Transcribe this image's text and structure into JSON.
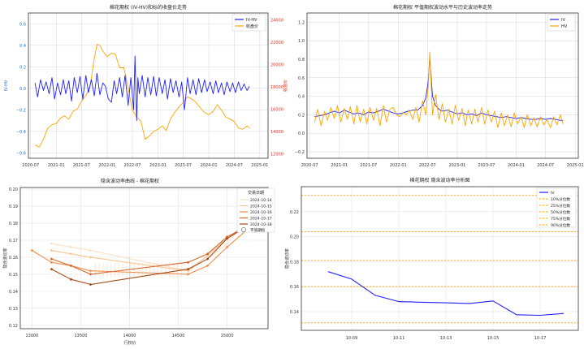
{
  "chart_data": [
    {
      "type": "line",
      "title": "棉花期权 (IV-HV)和标的收盘价走势",
      "xlabel": "",
      "ylabel": "IV-HV",
      "y2label": "收盘价",
      "xlim": [
        "2020-06-15",
        "2025-03-01"
      ],
      "xticks": [
        "2020-07",
        "2021-01",
        "2021-07",
        "2022-01",
        "2022-07",
        "2023-01",
        "2023-07",
        "2024-01",
        "2024-07",
        "2025-01"
      ],
      "ylim": [
        -0.65,
        0.7
      ],
      "yticks": [
        -0.6,
        -0.4,
        -0.2,
        0.0,
        0.2,
        0.4,
        0.6
      ],
      "y2lim": [
        11600,
        24600
      ],
      "y2ticks": [
        12000,
        14000,
        16000,
        18000,
        20000,
        22000,
        24000
      ],
      "grid": true,
      "legend": "top-right",
      "series": [
        {
          "name": "IV-HV",
          "color": "#1f1fff",
          "axis": "left",
          "x": [
            "2020-08-01",
            "2020-08-20",
            "2020-09-10",
            "2020-10-01",
            "2020-10-20",
            "2020-11-10",
            "2020-12-01",
            "2020-12-20",
            "2021-01-10",
            "2021-02-01",
            "2021-02-20",
            "2021-03-10",
            "2021-04-01",
            "2021-04-20",
            "2021-05-10",
            "2021-06-01",
            "2021-06-20",
            "2021-07-10",
            "2021-08-01",
            "2021-08-20",
            "2021-09-10",
            "2021-10-01",
            "2021-10-20",
            "2021-11-10",
            "2021-12-01",
            "2021-12-20",
            "2022-01-10",
            "2022-02-01",
            "2022-02-20",
            "2022-03-10",
            "2022-04-01",
            "2022-04-20",
            "2022-05-10",
            "2022-06-01",
            "2022-06-20",
            "2022-07-10",
            "2022-07-20",
            "2022-08-01",
            "2022-08-10",
            "2022-08-20",
            "2022-09-10",
            "2022-10-01",
            "2022-10-20",
            "2022-11-10",
            "2022-12-01",
            "2022-12-20",
            "2023-01-10",
            "2023-02-01",
            "2023-02-20",
            "2023-03-10",
            "2023-04-01",
            "2023-04-20",
            "2023-05-10",
            "2023-06-01",
            "2023-06-20",
            "2023-07-10",
            "2023-08-01",
            "2023-08-20",
            "2023-09-10",
            "2023-10-01",
            "2023-10-20",
            "2023-11-10",
            "2023-12-01",
            "2023-12-20",
            "2024-01-10",
            "2024-02-01",
            "2024-02-20",
            "2024-03-10",
            "2024-04-01",
            "2024-04-20",
            "2024-05-10",
            "2024-06-01",
            "2024-06-20",
            "2024-07-10",
            "2024-08-01",
            "2024-08-20",
            "2024-09-10",
            "2024-10-01",
            "2024-10-18"
          ],
          "values": [
            0.05,
            -0.08,
            0.08,
            -0.02,
            0.06,
            -0.05,
            0.1,
            -0.1,
            0.05,
            -0.06,
            0.08,
            -0.05,
            0.07,
            -0.12,
            0.1,
            -0.04,
            0.11,
            -0.1,
            0.12,
            -0.04,
            0.08,
            -0.07,
            0.14,
            -0.06,
            0.05,
            0.02,
            -0.1,
            -0.13,
            0.07,
            -0.05,
            0.1,
            -0.08,
            0.12,
            -0.16,
            0.1,
            -0.2,
            0.3,
            -0.3,
            0.1,
            -0.05,
            0.12,
            -0.08,
            0.1,
            -0.06,
            0.11,
            -0.07,
            0.1,
            -0.05,
            0.08,
            -0.1,
            0.09,
            -0.04,
            0.07,
            -0.08,
            0.06,
            -0.2,
            0.1,
            -0.05,
            0.08,
            -0.06,
            0.09,
            -0.04,
            0.08,
            -0.03,
            0.06,
            -0.05,
            0.07,
            -0.04,
            0.05,
            -0.06,
            0.06,
            -0.03,
            0.05,
            -0.04,
            0.06,
            -0.02,
            0.04,
            -0.02,
            0.02
          ]
        },
        {
          "name": "收盘价",
          "color": "#ffa500",
          "axis": "right",
          "x": [
            "2020-08-01",
            "2020-09-01",
            "2020-10-01",
            "2020-11-01",
            "2020-12-01",
            "2021-01-01",
            "2021-02-01",
            "2021-03-01",
            "2021-04-01",
            "2021-05-01",
            "2021-06-01",
            "2021-07-01",
            "2021-08-01",
            "2021-09-01",
            "2021-10-01",
            "2021-10-20",
            "2021-11-10",
            "2021-12-01",
            "2022-01-01",
            "2022-02-01",
            "2022-03-01",
            "2022-04-01",
            "2022-05-01",
            "2022-06-01",
            "2022-07-01",
            "2022-08-01",
            "2022-09-01",
            "2022-10-01",
            "2022-11-01",
            "2022-12-01",
            "2023-01-01",
            "2023-02-01",
            "2023-03-01",
            "2023-04-01",
            "2023-05-01",
            "2023-06-01",
            "2023-07-01",
            "2023-08-01",
            "2023-09-01",
            "2023-10-01",
            "2023-11-01",
            "2023-12-01",
            "2024-01-01",
            "2024-02-01",
            "2024-03-01",
            "2024-04-01",
            "2024-05-01",
            "2024-06-01",
            "2024-07-01",
            "2024-08-01",
            "2024-09-01",
            "2024-10-01",
            "2024-10-18"
          ],
          "values": [
            12800,
            12600,
            13300,
            14300,
            14600,
            14700,
            15200,
            15400,
            15100,
            15800,
            16000,
            16700,
            17200,
            18100,
            20500,
            21800,
            21700,
            21200,
            20700,
            21000,
            20900,
            19700,
            19700,
            17900,
            15900,
            15300,
            14900,
            13300,
            13600,
            14000,
            14200,
            14500,
            14100,
            15100,
            15700,
            16200,
            16600,
            17100,
            16900,
            16600,
            16100,
            15700,
            15500,
            15800,
            16400,
            15900,
            15300,
            15100,
            14900,
            14300,
            14200,
            14500,
            14300
          ]
        }
      ]
    },
    {
      "type": "line",
      "title": "棉花期权 平值期权波动水平与历史波动率走势",
      "xlabel": "",
      "ylabel": "",
      "xlim": [
        "2020-06-15",
        "2025-01-20"
      ],
      "xticks": [
        "2020-07",
        "2021-01",
        "2021-07",
        "2022-01",
        "2022-07",
        "2023-01",
        "2023-07",
        "2024-01",
        "2024-07",
        "2025-01"
      ],
      "ylim": [
        -0.27,
        1.3
      ],
      "yticks": [
        -0.2,
        0.0,
        0.2,
        0.4,
        0.6,
        0.8,
        1.0,
        1.2
      ],
      "grid": true,
      "legend": "top-right",
      "series": [
        {
          "name": "IV",
          "color": "#1f1fff",
          "x": [
            "2020-08-01",
            "2020-09-01",
            "2020-10-01",
            "2020-11-01",
            "2020-12-01",
            "2021-01-01",
            "2021-02-01",
            "2021-03-01",
            "2021-04-01",
            "2021-05-01",
            "2021-06-01",
            "2021-07-01",
            "2021-08-01",
            "2021-09-01",
            "2021-10-01",
            "2021-11-01",
            "2021-12-01",
            "2022-01-01",
            "2022-02-01",
            "2022-03-01",
            "2022-04-01",
            "2022-05-01",
            "2022-06-01",
            "2022-06-20",
            "2022-07-05",
            "2022-07-15",
            "2022-08-01",
            "2022-08-20",
            "2022-09-10",
            "2022-10-01",
            "2022-11-01",
            "2022-12-01",
            "2023-01-01",
            "2023-02-01",
            "2023-03-01",
            "2023-04-01",
            "2023-05-01",
            "2023-06-01",
            "2023-07-01",
            "2023-08-01",
            "2023-09-01",
            "2023-10-01",
            "2023-11-01",
            "2023-12-01",
            "2024-01-01",
            "2024-02-01",
            "2024-03-01",
            "2024-04-01",
            "2024-05-01",
            "2024-06-01",
            "2024-07-01",
            "2024-08-01",
            "2024-09-01",
            "2024-10-01",
            "2024-10-18"
          ],
          "values": [
            0.18,
            0.19,
            0.2,
            0.22,
            0.24,
            0.22,
            0.25,
            0.23,
            0.21,
            0.22,
            0.2,
            0.23,
            0.22,
            0.24,
            0.26,
            0.24,
            0.22,
            0.21,
            0.22,
            0.24,
            0.25,
            0.25,
            0.3,
            0.38,
            0.55,
            0.82,
            0.4,
            0.3,
            0.26,
            0.24,
            0.25,
            0.23,
            0.21,
            0.22,
            0.2,
            0.21,
            0.19,
            0.22,
            0.2,
            0.19,
            0.18,
            0.17,
            0.18,
            0.17,
            0.16,
            0.17,
            0.16,
            0.15,
            0.15,
            0.16,
            0.15,
            0.16,
            0.15,
            0.14,
            0.14
          ]
        },
        {
          "name": "HV",
          "color": "#ffa500",
          "x": [
            "2020-08-01",
            "2020-08-20",
            "2020-09-10",
            "2020-10-01",
            "2020-10-20",
            "2020-11-10",
            "2020-12-01",
            "2020-12-20",
            "2021-01-10",
            "2021-02-01",
            "2021-02-20",
            "2021-03-10",
            "2021-04-01",
            "2021-04-20",
            "2021-05-10",
            "2021-06-01",
            "2021-06-20",
            "2021-07-10",
            "2021-08-01",
            "2021-08-20",
            "2021-09-10",
            "2021-10-01",
            "2021-10-20",
            "2021-11-10",
            "2021-12-01",
            "2021-12-20",
            "2022-01-10",
            "2022-02-01",
            "2022-02-20",
            "2022-03-10",
            "2022-04-01",
            "2022-04-20",
            "2022-05-10",
            "2022-06-01",
            "2022-06-20",
            "2022-07-05",
            "2022-07-15",
            "2022-08-01",
            "2022-08-20",
            "2022-09-10",
            "2022-10-01",
            "2022-10-20",
            "2022-11-10",
            "2022-12-01",
            "2022-12-20",
            "2023-01-10",
            "2023-02-01",
            "2023-02-20",
            "2023-03-10",
            "2023-04-01",
            "2023-04-20",
            "2023-05-10",
            "2023-06-01",
            "2023-06-20",
            "2023-07-10",
            "2023-08-01",
            "2023-08-20",
            "2023-09-10",
            "2023-10-01",
            "2023-10-20",
            "2023-11-10",
            "2023-12-01",
            "2023-12-20",
            "2024-01-10",
            "2024-02-01",
            "2024-02-20",
            "2024-03-10",
            "2024-04-01",
            "2024-04-20",
            "2024-05-10",
            "2024-06-01",
            "2024-06-20",
            "2024-07-10",
            "2024-08-01",
            "2024-08-20",
            "2024-09-10",
            "2024-10-01",
            "2024-10-18"
          ],
          "values": [
            0.12,
            0.26,
            0.08,
            0.24,
            0.14,
            0.28,
            0.16,
            0.3,
            0.12,
            0.27,
            0.15,
            0.29,
            0.1,
            0.3,
            0.12,
            0.26,
            0.1,
            0.28,
            0.14,
            0.27,
            0.08,
            0.3,
            0.12,
            0.26,
            0.28,
            0.2,
            0.18,
            0.22,
            0.2,
            0.25,
            0.15,
            0.28,
            0.12,
            0.35,
            0.2,
            0.48,
            0.88,
            0.2,
            0.42,
            0.15,
            0.32,
            0.12,
            0.26,
            0.1,
            0.3,
            0.14,
            0.27,
            0.08,
            0.25,
            0.1,
            0.26,
            0.12,
            0.28,
            0.1,
            0.25,
            0.12,
            0.24,
            0.06,
            0.22,
            0.08,
            0.2,
            0.07,
            0.22,
            0.1,
            0.18,
            0.06,
            0.2,
            0.08,
            0.17,
            0.07,
            0.18,
            0.09,
            0.15,
            0.06,
            0.18,
            0.09,
            0.2,
            0.1
          ]
        }
      ]
    },
    {
      "type": "line",
      "title": "隐含波动率曲线 - 棉花期权",
      "xlabel": "行权价",
      "ylabel": "隐含波动率",
      "xlim": [
        12880,
        15420
      ],
      "xticks": [
        13000,
        13500,
        14000,
        14500,
        15000
      ],
      "ylim": [
        0.118,
        0.201
      ],
      "yticks": [
        0.12,
        0.13,
        0.14,
        0.15,
        0.16,
        0.17,
        0.18,
        0.19,
        0.2
      ],
      "grid": true,
      "legend": "top-right",
      "legend_title": "交易日期",
      "extra_legend": "平值期权",
      "series": [
        {
          "name": "2024-10-14",
          "color": "#fbe0c5",
          "x": [
            13200,
            13400,
            13600,
            14600,
            14800,
            15000,
            15200
          ],
          "values": [
            0.168,
            0.166,
            0.164,
            0.152,
            0.159,
            0.168,
            0.182
          ]
        },
        {
          "name": "2024-10-15",
          "color": "#f8c491",
          "x": [
            13200,
            13400,
            13600,
            14600,
            14800,
            15000,
            15200
          ],
          "values": [
            0.164,
            0.162,
            0.16,
            0.152,
            0.161,
            0.171,
            0.18
          ]
        },
        {
          "name": "2024-10-16",
          "color": "#ef8c4c",
          "x": [
            13000,
            13200,
            13400,
            13600,
            14600,
            14800,
            15000,
            15200
          ],
          "values": [
            0.164,
            0.157,
            0.155,
            0.152,
            0.15,
            0.155,
            0.166,
            0.176
          ]
        },
        {
          "name": "2024-10-17",
          "color": "#d9652a",
          "x": [
            13200,
            13400,
            13600,
            14600,
            14800,
            15000,
            15200
          ],
          "values": [
            0.159,
            0.155,
            0.15,
            0.157,
            0.162,
            0.172,
            0.178
          ]
        },
        {
          "name": "2024-10-18",
          "color": "#a64a16",
          "x": [
            13200,
            13400,
            13600,
            14600,
            14800,
            15000,
            15200
          ],
          "values": [
            0.153,
            0.147,
            0.144,
            0.153,
            0.159,
            0.171,
            0.178
          ]
        }
      ]
    },
    {
      "type": "line",
      "title": "棉花期权 隐含波动率分析图",
      "xlabel": "",
      "ylabel": "隐含波动率",
      "categories": [
        "10-08",
        "10-09",
        "10-10",
        "10-11",
        "10-12",
        "10-13",
        "10-14",
        "10-15",
        "10-16",
        "10-17",
        "10-18"
      ],
      "xticks": [
        "10-09",
        "10-11",
        "10-13",
        "10-15",
        "10-17"
      ],
      "ylim": [
        0.125,
        0.24
      ],
      "yticks": [
        0.14,
        0.16,
        0.18,
        0.2,
        0.22
      ],
      "grid": true,
      "legend": "top-right",
      "series": [
        {
          "name": "IV",
          "color": "#1f1fff",
          "values": [
            0.172,
            0.166,
            0.153,
            0.148,
            0.1475,
            0.147,
            0.1465,
            0.1485,
            0.1375,
            0.137,
            0.1385
          ]
        }
      ],
      "reference_lines": [
        {
          "name": "10%分位数",
          "value": 0.131
        },
        {
          "name": "25%分位数",
          "value": 0.16
        },
        {
          "name": "50%分位数",
          "value": 0.181
        },
        {
          "name": "75%分位数",
          "value": 0.204
        },
        {
          "name": "90%分位数",
          "value": 0.233
        }
      ],
      "reference_color": "#ffa500"
    }
  ]
}
